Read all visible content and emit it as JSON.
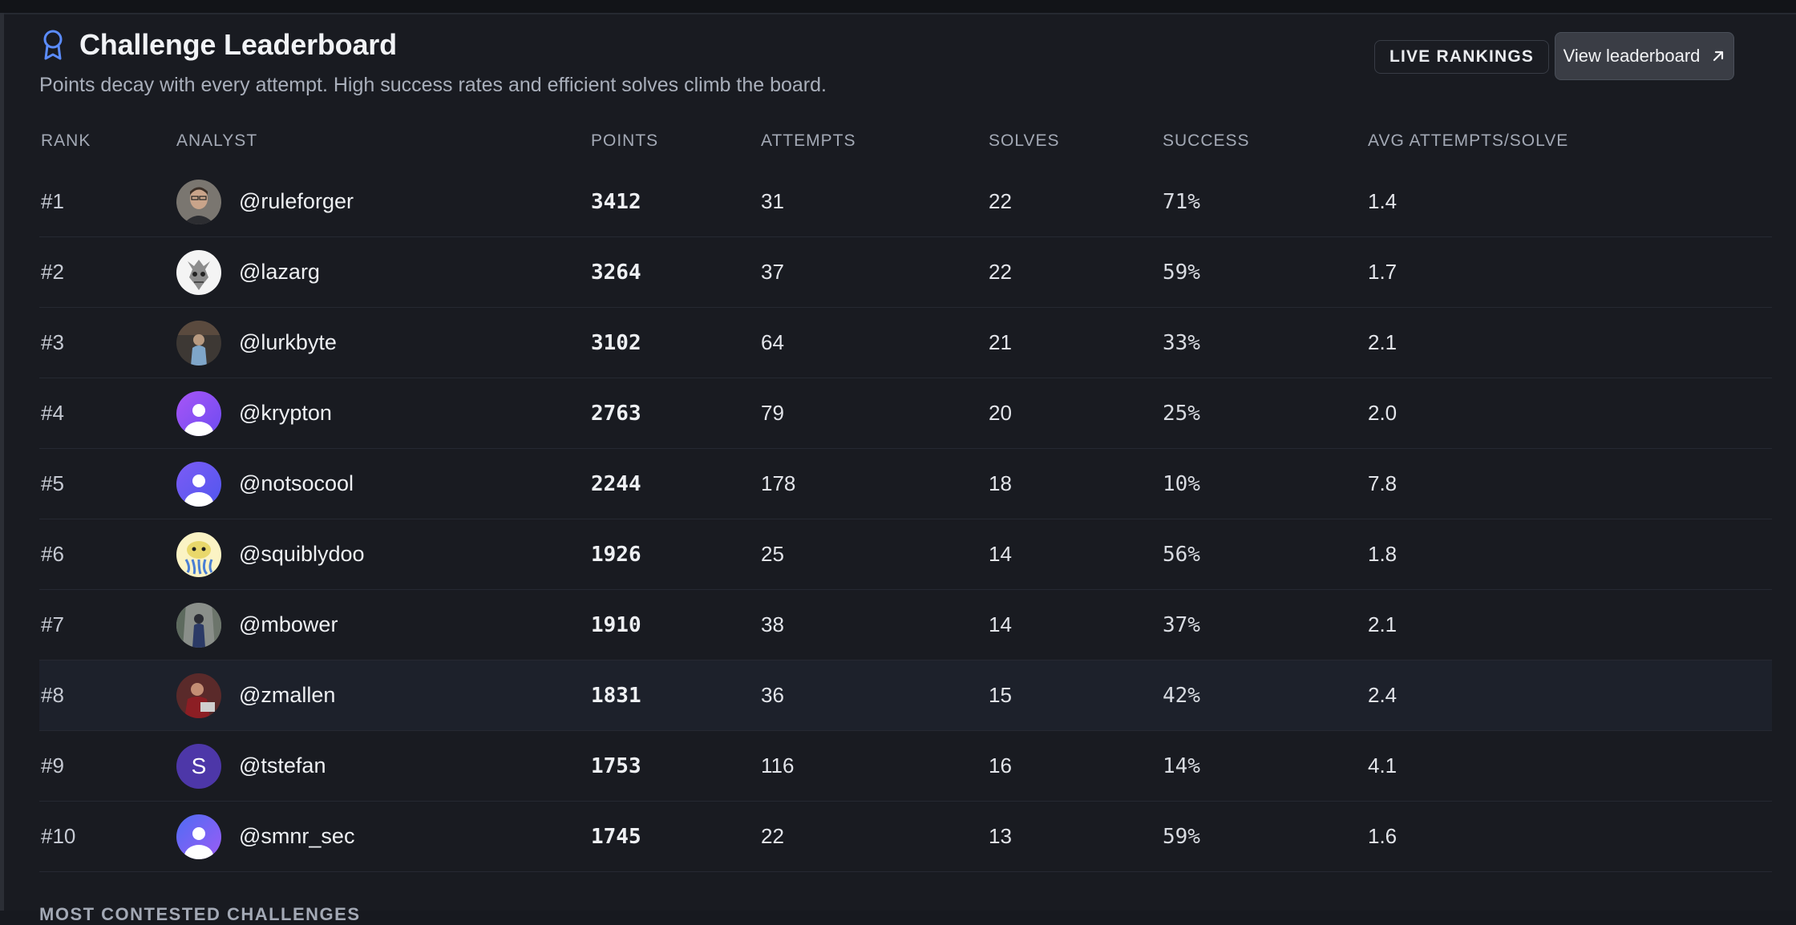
{
  "header": {
    "title": "Challenge Leaderboard",
    "subtitle": "Points decay with every attempt. High success rates and efficient solves climb the board.",
    "badge": "LIVE RANKINGS",
    "view_button_label": "View leaderboard",
    "title_icon": "award-ribbon-icon",
    "view_button_icon": "arrow-up-right-icon"
  },
  "colors": {
    "background": "#191b21",
    "accent": "#5b8cff",
    "avatar_gradient_start": "#8b5cf6",
    "avatar_gradient_end": "#5b5cf0"
  },
  "table": {
    "columns": {
      "rank": "RANK",
      "analyst": "ANALYST",
      "points": "POINTS",
      "attempts": "ATTEMPTS",
      "solves": "SOLVES",
      "success": "SUCCESS",
      "avg": "AVG ATTEMPTS/SOLVE"
    },
    "rows": [
      {
        "rank": "#1",
        "handle": "@ruleforger",
        "points": "3412",
        "attempts": "31",
        "solves": "22",
        "success": "71%",
        "avg": "1.4",
        "avatar": "photo"
      },
      {
        "rank": "#2",
        "handle": "@lazarg",
        "points": "3264",
        "attempts": "37",
        "solves": "22",
        "success": "59%",
        "avg": "1.7",
        "avatar": "photo"
      },
      {
        "rank": "#3",
        "handle": "@lurkbyte",
        "points": "3102",
        "attempts": "64",
        "solves": "21",
        "success": "33%",
        "avg": "2.1",
        "avatar": "photo"
      },
      {
        "rank": "#4",
        "handle": "@krypton",
        "points": "2763",
        "attempts": "79",
        "solves": "20",
        "success": "25%",
        "avg": "2.0",
        "avatar": "default-user"
      },
      {
        "rank": "#5",
        "handle": "@notsocool",
        "points": "2244",
        "attempts": "178",
        "solves": "18",
        "success": "10%",
        "avg": "7.8",
        "avatar": "default-user"
      },
      {
        "rank": "#6",
        "handle": "@squiblydoo",
        "points": "1926",
        "attempts": "25",
        "solves": "14",
        "success": "56%",
        "avg": "1.8",
        "avatar": "illustration"
      },
      {
        "rank": "#7",
        "handle": "@mbower",
        "points": "1910",
        "attempts": "38",
        "solves": "14",
        "success": "37%",
        "avg": "2.1",
        "avatar": "photo"
      },
      {
        "rank": "#8",
        "handle": "@zmallen",
        "points": "1831",
        "attempts": "36",
        "solves": "15",
        "success": "42%",
        "avg": "2.4",
        "avatar": "photo"
      },
      {
        "rank": "#9",
        "handle": "@tstefan",
        "points": "1753",
        "attempts": "116",
        "solves": "16",
        "success": "14%",
        "avg": "4.1",
        "avatar": "initial",
        "initial": "S"
      },
      {
        "rank": "#10",
        "handle": "@smnr_sec",
        "points": "1745",
        "attempts": "22",
        "solves": "13",
        "success": "59%",
        "avg": "1.6",
        "avatar": "default-user"
      }
    ]
  },
  "next_section_title": "MOST CONTESTED CHALLENGES"
}
